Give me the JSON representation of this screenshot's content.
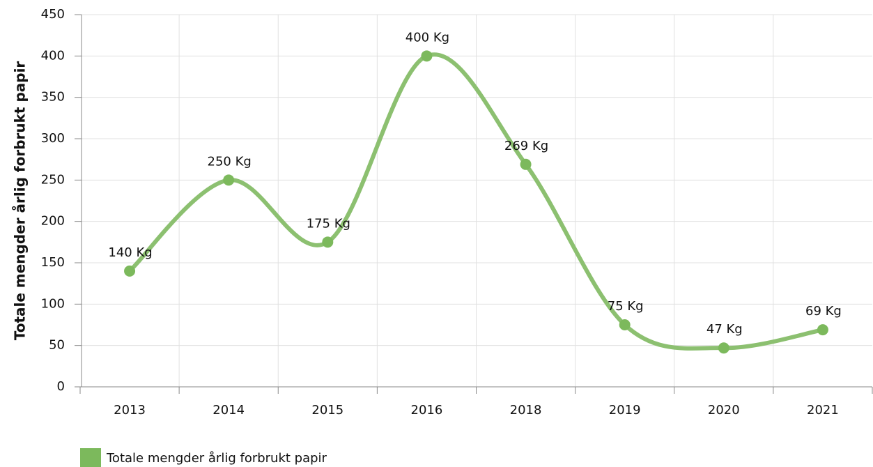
{
  "chart_data": {
    "type": "line",
    "y_label": "Totale mengder årlig forbrukt papir",
    "categories": [
      "2013",
      "2014",
      "2015",
      "2016",
      "2018",
      "2019",
      "2020",
      "2021"
    ],
    "series": [
      {
        "name": "Totale mengder årlig forbrukt papir",
        "color": "#8cc070",
        "marker_color": "#7cb95c",
        "values": [
          140,
          250,
          175,
          400,
          269,
          75,
          47,
          69
        ],
        "value_labels": [
          "140 Kg",
          "250 Kg",
          "175 Kg",
          "400 Kg",
          "269 Kg",
          "75 Kg",
          "47 Kg",
          "69 Kg"
        ]
      }
    ],
    "ylim": [
      0,
      450
    ],
    "yticks": [
      0,
      50,
      100,
      150,
      200,
      250,
      300,
      350,
      400,
      450
    ],
    "grid": true,
    "legend": "bottom-left"
  }
}
